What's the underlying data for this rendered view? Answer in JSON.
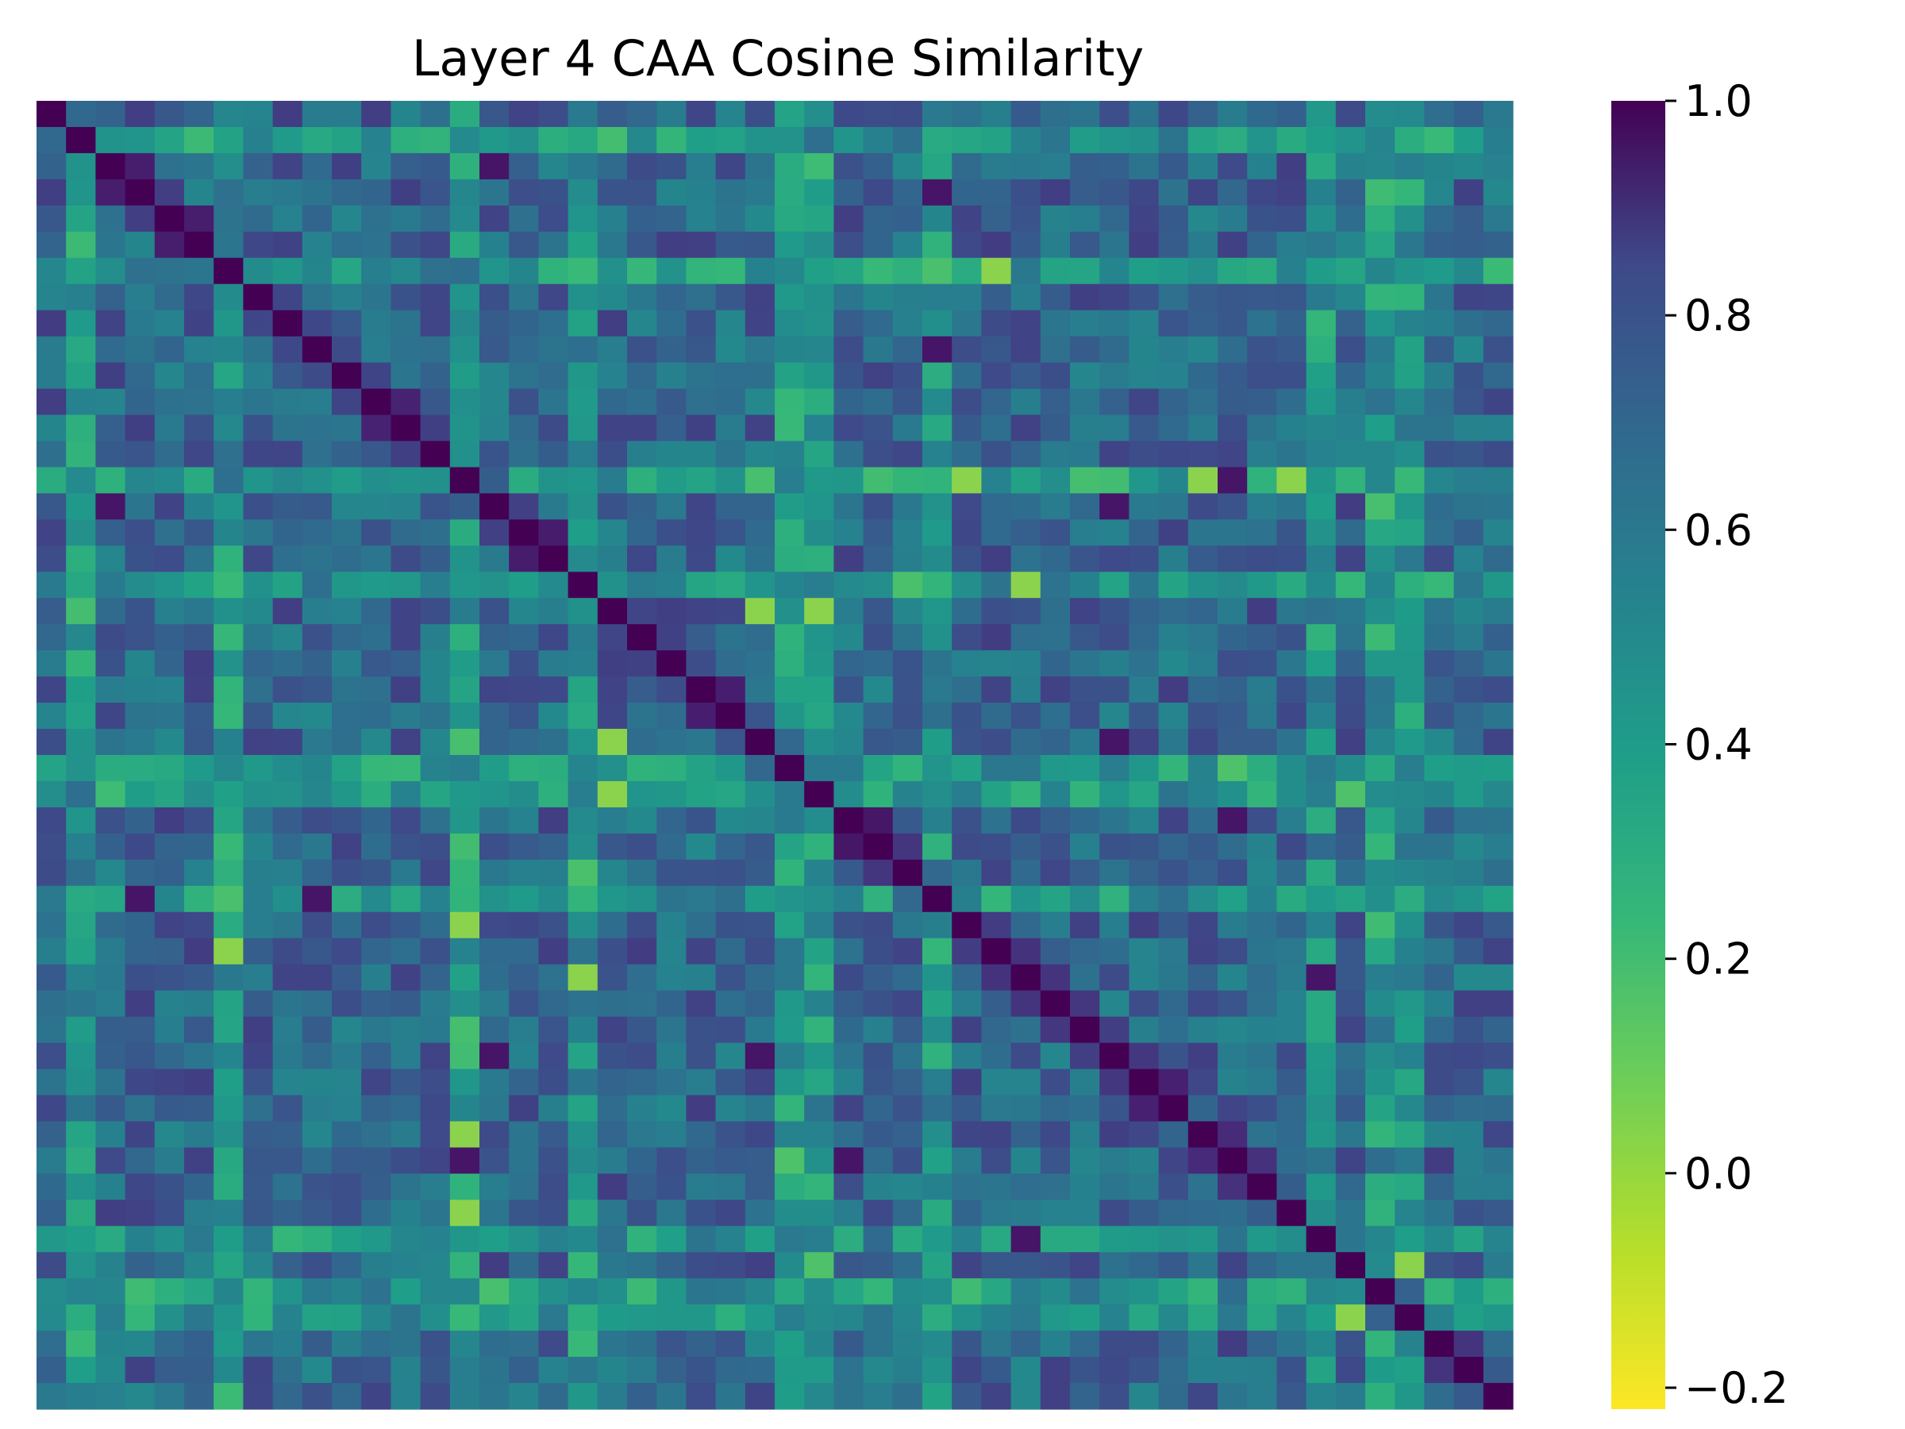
{
  "chart_data": {
    "type": "heatmap",
    "title": "Layer 4 CAA Cosine Similarity",
    "xlabel": "",
    "ylabel": "",
    "colormap": "viridis_r",
    "vmin": -0.22,
    "vmax": 1.0,
    "n_rows": 50,
    "n_cols": 50,
    "diagonal_value": 1.0,
    "colorbar": {
      "ticks": [
        -0.2,
        0.0,
        0.2,
        0.4,
        0.6,
        0.8,
        1.0
      ],
      "tick_labels": [
        "−0.2",
        "0.0",
        "0.2",
        "0.4",
        "0.6",
        "0.8",
        "1.0"
      ],
      "placement": "right"
    },
    "gridlines": false,
    "low_similarity_rows": [
      6,
      14,
      18,
      25,
      30,
      43,
      45,
      46
    ],
    "low_similarity_cols": [
      1,
      6,
      14,
      18,
      26,
      30,
      45,
      46
    ],
    "strong_offdiagonal_pairs": [
      [
        9,
        30
      ],
      [
        14,
        40
      ],
      [
        24,
        36
      ],
      [
        2,
        15
      ],
      [
        3,
        30
      ],
      [
        15,
        36
      ],
      [
        27,
        40
      ],
      [
        33,
        43
      ]
    ],
    "weak_offdiagonal_pairs": [
      [
        6,
        32
      ],
      [
        14,
        42
      ],
      [
        18,
        33
      ],
      [
        19,
        26
      ],
      [
        24,
        19
      ],
      [
        32,
        6
      ],
      [
        31,
        14
      ],
      [
        39,
        14
      ],
      [
        44,
        46
      ]
    ]
  },
  "colors": {
    "high": "#440154",
    "mid": "#21918c",
    "low": "#fde725"
  }
}
